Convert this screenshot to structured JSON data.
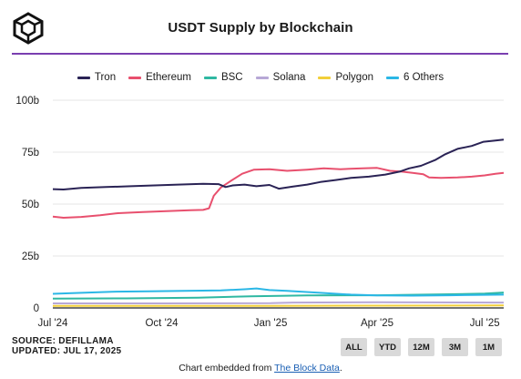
{
  "header": {
    "title": "USDT Supply by Blockchain"
  },
  "legend": [
    {
      "name": "Tron",
      "color": "#2a2355"
    },
    {
      "name": "Ethereum",
      "color": "#e8506e"
    },
    {
      "name": "BSC",
      "color": "#2fb8a2"
    },
    {
      "name": "Solana",
      "color": "#b7a8d6"
    },
    {
      "name": "Polygon",
      "color": "#f2cf3a"
    },
    {
      "name": "6 Others",
      "color": "#2bb7e6"
    }
  ],
  "footer": {
    "source": "SOURCE: DEFILLAMA",
    "updated": "UPDATED: JUL 17, 2025",
    "buttons": [
      "ALL",
      "YTD",
      "12M",
      "3M",
      "1M"
    ],
    "embed_prefix": "Chart embedded from ",
    "embed_link": "The Block Data",
    "embed_suffix": "."
  },
  "chart_data": {
    "type": "line",
    "title": "USDT Supply by Blockchain",
    "xlabel": "",
    "ylabel": "",
    "x_range": [
      "2024-07-01",
      "2025-07-17"
    ],
    "ylim": [
      0,
      100
    ],
    "y_ticks": [
      0,
      25,
      50,
      75,
      100
    ],
    "y_tick_labels": [
      "0",
      "25b",
      "50b",
      "75b",
      "100b"
    ],
    "x_ticks": [
      "2024-07-01",
      "2024-10-01",
      "2025-01-01",
      "2025-04-01",
      "2025-07-01"
    ],
    "x_tick_labels": [
      "Jul '24",
      "Oct '24",
      "Jan '25",
      "Apr '25",
      "Jul '25"
    ],
    "grid": "horizontal",
    "legend_position": "top",
    "series": [
      {
        "name": "Tron",
        "color": "#2a2355",
        "points": [
          [
            "2024-07-01",
            57.2
          ],
          [
            "2024-07-10",
            57.0
          ],
          [
            "2024-07-25",
            57.8
          ],
          [
            "2024-08-15",
            58.2
          ],
          [
            "2024-09-05",
            58.6
          ],
          [
            "2024-09-25",
            59.0
          ],
          [
            "2024-10-15",
            59.4
          ],
          [
            "2024-11-05",
            59.8
          ],
          [
            "2024-11-18",
            59.6
          ],
          [
            "2024-11-24",
            58.2
          ],
          [
            "2024-11-30",
            59.0
          ],
          [
            "2024-12-10",
            59.4
          ],
          [
            "2024-12-20",
            58.6
          ],
          [
            "2024-12-31",
            59.2
          ],
          [
            "2025-01-08",
            57.4
          ],
          [
            "2025-01-20",
            58.4
          ],
          [
            "2025-02-01",
            59.4
          ],
          [
            "2025-02-12",
            60.6
          ],
          [
            "2025-02-25",
            61.6
          ],
          [
            "2025-03-10",
            62.6
          ],
          [
            "2025-03-25",
            63.2
          ],
          [
            "2025-04-08",
            64.2
          ],
          [
            "2025-04-20",
            65.6
          ],
          [
            "2025-04-28",
            67.2
          ],
          [
            "2025-05-08",
            68.4
          ],
          [
            "2025-05-20",
            71.2
          ],
          [
            "2025-05-28",
            73.8
          ],
          [
            "2025-06-08",
            76.6
          ],
          [
            "2025-06-20",
            78.0
          ],
          [
            "2025-06-30",
            80.0
          ],
          [
            "2025-07-10",
            80.6
          ],
          [
            "2025-07-17",
            81.0
          ]
        ]
      },
      {
        "name": "Ethereum",
        "color": "#e8506e",
        "points": [
          [
            "2024-07-01",
            44.0
          ],
          [
            "2024-07-10",
            43.4
          ],
          [
            "2024-07-25",
            43.8
          ],
          [
            "2024-08-10",
            44.6
          ],
          [
            "2024-08-25",
            45.6
          ],
          [
            "2024-09-15",
            46.2
          ],
          [
            "2024-10-05",
            46.6
          ],
          [
            "2024-10-25",
            47.0
          ],
          [
            "2024-11-05",
            47.2
          ],
          [
            "2024-11-10",
            48.0
          ],
          [
            "2024-11-14",
            54.0
          ],
          [
            "2024-11-20",
            58.0
          ],
          [
            "2024-11-28",
            61.0
          ],
          [
            "2024-12-08",
            64.6
          ],
          [
            "2024-12-18",
            66.6
          ],
          [
            "2024-12-31",
            66.8
          ],
          [
            "2025-01-15",
            66.0
          ],
          [
            "2025-02-01",
            66.6
          ],
          [
            "2025-02-15",
            67.2
          ],
          [
            "2025-03-01",
            66.8
          ],
          [
            "2025-03-20",
            67.2
          ],
          [
            "2025-04-01",
            67.4
          ],
          [
            "2025-04-12",
            66.0
          ],
          [
            "2025-04-22",
            65.6
          ],
          [
            "2025-05-01",
            65.0
          ],
          [
            "2025-05-10",
            64.4
          ],
          [
            "2025-05-15",
            62.8
          ],
          [
            "2025-05-25",
            62.6
          ],
          [
            "2025-06-08",
            62.8
          ],
          [
            "2025-06-20",
            63.2
          ],
          [
            "2025-07-01",
            63.8
          ],
          [
            "2025-07-10",
            64.6
          ],
          [
            "2025-07-17",
            65.0
          ]
        ]
      },
      {
        "name": "BSC",
        "color": "#2fb8a2",
        "points": [
          [
            "2024-07-01",
            4.5
          ],
          [
            "2024-09-01",
            4.6
          ],
          [
            "2024-11-01",
            4.9
          ],
          [
            "2024-12-15",
            5.6
          ],
          [
            "2025-02-01",
            6.0
          ],
          [
            "2025-04-01",
            6.1
          ],
          [
            "2025-06-01",
            6.6
          ],
          [
            "2025-07-01",
            6.9
          ],
          [
            "2025-07-17",
            7.4
          ]
        ]
      },
      {
        "name": "Solana",
        "color": "#b7a8d6",
        "points": [
          [
            "2024-07-01",
            2.2
          ],
          [
            "2024-10-01",
            2.2
          ],
          [
            "2025-01-01",
            2.3
          ],
          [
            "2025-01-20",
            2.6
          ],
          [
            "2025-04-01",
            2.7
          ],
          [
            "2025-07-17",
            2.6
          ]
        ]
      },
      {
        "name": "Polygon",
        "color": "#f2cf3a",
        "points": [
          [
            "2024-07-01",
            1.0
          ],
          [
            "2024-10-01",
            1.0
          ],
          [
            "2025-01-01",
            1.0
          ],
          [
            "2025-04-01",
            1.1
          ],
          [
            "2025-07-17",
            1.2
          ]
        ]
      },
      {
        "name": "6 Others",
        "color": "#2bb7e6",
        "points": [
          [
            "2024-07-01",
            6.8
          ],
          [
            "2024-07-20",
            7.2
          ],
          [
            "2024-08-20",
            7.8
          ],
          [
            "2024-09-20",
            8.0
          ],
          [
            "2024-10-20",
            8.2
          ],
          [
            "2024-11-20",
            8.4
          ],
          [
            "2024-12-10",
            9.0
          ],
          [
            "2024-12-20",
            9.4
          ],
          [
            "2024-12-31",
            8.6
          ],
          [
            "2025-01-15",
            8.2
          ],
          [
            "2025-02-15",
            7.2
          ],
          [
            "2025-03-10",
            6.4
          ],
          [
            "2025-04-01",
            6.0
          ],
          [
            "2025-05-01",
            5.9
          ],
          [
            "2025-06-01",
            6.1
          ],
          [
            "2025-07-01",
            6.3
          ],
          [
            "2025-07-17",
            6.4
          ]
        ]
      }
    ]
  }
}
